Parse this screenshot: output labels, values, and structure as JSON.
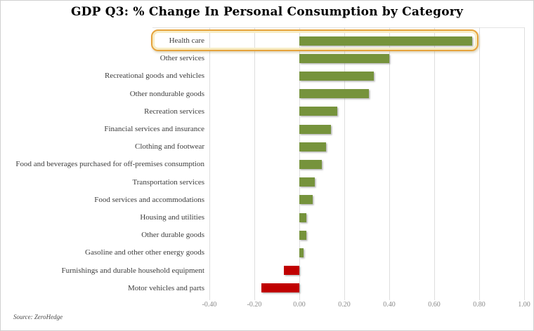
{
  "title": "GDP Q3: % Change In Personal Consumption by Category",
  "source": "Source: ZeroHedge",
  "colors": {
    "positive_bar": "#76933C",
    "negative_bar": "#C00000",
    "gridline": "#DEDEDE",
    "tick_label": "#8A8A8A",
    "category_label": "#3D3D3D",
    "highlight_border": "#E6A33C",
    "highlight_inner_ring": "#F7ECC4"
  },
  "chart_data": {
    "type": "bar",
    "orientation": "horizontal",
    "title": "GDP Q3: % Change In Personal Consumption by Category",
    "categories": [
      "Health care",
      "Other services",
      "Recreational goods and vehicles",
      "Other nondurable goods",
      "Recreation services",
      "Financial services and insurance",
      "Clothing and footwear",
      "Food and beverages purchased for off-premises consumption",
      "Transportation services",
      "Food services and accommodations",
      "Housing and utilities",
      "Other durable goods",
      "Gasoline and other other energy goods",
      "Furnishings and durable household equipment",
      "Motor vehicles and parts"
    ],
    "values": [
      0.77,
      0.4,
      0.33,
      0.31,
      0.17,
      0.14,
      0.12,
      0.1,
      0.07,
      0.06,
      0.03,
      0.03,
      0.02,
      -0.07,
      -0.17
    ],
    "xlim": [
      -0.4,
      1.0
    ],
    "x_ticks": [
      -0.4,
      -0.2,
      0.0,
      0.2,
      0.4,
      0.6,
      0.8,
      1.0
    ],
    "x_tick_labels": [
      "-0.40",
      "-0.20",
      "0.00",
      "0.20",
      "0.40",
      "0.60",
      "0.80",
      "1.00"
    ],
    "grid": true,
    "legend": false,
    "highlighted_category": "Health care",
    "highlight_index": 0
  }
}
